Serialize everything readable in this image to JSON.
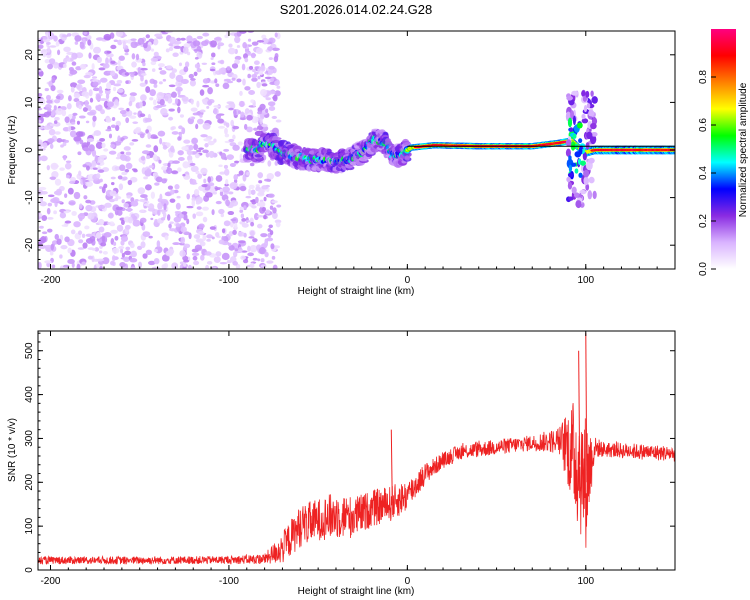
{
  "chart_data": [
    {
      "type": "heatmap",
      "title": "S201.2026.014.02.24.G28",
      "xlabel": "Height of straight line (km)",
      "ylabel": "Frequency (Hz)",
      "xlim": [
        -207,
        150
      ],
      "ylim": [
        -25,
        25
      ],
      "x_ticks": [
        -200,
        -100,
        0,
        100
      ],
      "y_ticks": [
        -20,
        -10,
        0,
        10,
        20
      ],
      "colorbar": {
        "label": "Normalized spectral amplitude",
        "range": [
          0,
          1
        ],
        "ticks": [
          0.0,
          0.2,
          0.4,
          0.6,
          0.8
        ],
        "colors": [
          "#ffffff",
          "#d9b3ff",
          "#8a2be2",
          "#0000ff",
          "#00ffff",
          "#00ff00",
          "#ffff00",
          "#ff8000",
          "#ff0000",
          "#ff0080"
        ]
      },
      "noise_region": {
        "x_range": [
          -207,
          -72
        ],
        "freq_range": [
          -25,
          25
        ],
        "amplitude": "low (0.1-0.3)"
      },
      "signal_track": [
        {
          "x": -82,
          "freq": 1.5
        },
        {
          "x": -75,
          "freq": 1.0
        },
        {
          "x": -70,
          "freq": -0.5
        },
        {
          "x": -62,
          "freq": -1.5
        },
        {
          "x": -55,
          "freq": -2.0
        },
        {
          "x": -48,
          "freq": -2.0
        },
        {
          "x": -40,
          "freq": -2.5
        },
        {
          "x": -33,
          "freq": -2.0
        },
        {
          "x": -25,
          "freq": -0.5
        },
        {
          "x": -18,
          "freq": 2.5
        },
        {
          "x": -12,
          "freq": 1.5
        },
        {
          "x": -8,
          "freq": -1.0
        },
        {
          "x": -3,
          "freq": -1.0
        },
        {
          "x": 2,
          "freq": 0.5
        },
        {
          "x": 15,
          "freq": 1.0
        },
        {
          "x": 40,
          "freq": 0.8
        },
        {
          "x": 70,
          "freq": 0.8
        },
        {
          "x": 85,
          "freq": 1.5
        },
        {
          "x": 92,
          "freq": 2.0
        },
        {
          "x": 96,
          "freq": 0.5
        },
        {
          "x": 100,
          "freq": -0.5
        },
        {
          "x": 105,
          "freq": 0.0
        },
        {
          "x": 130,
          "freq": 0.0
        },
        {
          "x": 150,
          "freq": 0.0
        }
      ],
      "burst": {
        "x_range": [
          90,
          105
        ],
        "freq_range": [
          -12,
          12
        ]
      },
      "reference_line": {
        "freq": 0.8,
        "x_range": [
          0,
          150
        ]
      }
    },
    {
      "type": "line",
      "xlabel": "Height of straight line (km)",
      "ylabel": "SNR (10 * v/v)",
      "xlim": [
        -207,
        150
      ],
      "ylim": [
        0,
        545
      ],
      "x_ticks": [
        -200,
        -100,
        0,
        100
      ],
      "y_ticks": [
        0,
        100,
        200,
        300,
        400,
        500
      ],
      "line_color": "#ee2222",
      "series": [
        {
          "name": "SNR",
          "x": [
            -207,
            -150,
            -100,
            -80,
            -70,
            -60,
            -50,
            -40,
            -30,
            -20,
            -10,
            0,
            10,
            20,
            30,
            50,
            70,
            85,
            90,
            95,
            100,
            105,
            110,
            130,
            150
          ],
          "y_mean": [
            22,
            22,
            23,
            25,
            50,
            100,
            115,
            125,
            120,
            140,
            150,
            170,
            220,
            250,
            270,
            280,
            290,
            295,
            280,
            250,
            200,
            280,
            275,
            270,
            265
          ],
          "y_spread": [
            15,
            15,
            15,
            20,
            60,
            80,
            80,
            90,
            80,
            70,
            70,
            60,
            40,
            30,
            30,
            30,
            30,
            50,
            150,
            250,
            260,
            40,
            30,
            30,
            30
          ]
        }
      ],
      "spikes": [
        {
          "x": -9,
          "y": 320
        },
        {
          "x": 100,
          "y": 540
        },
        {
          "x": 96,
          "y": 500
        }
      ]
    }
  ]
}
